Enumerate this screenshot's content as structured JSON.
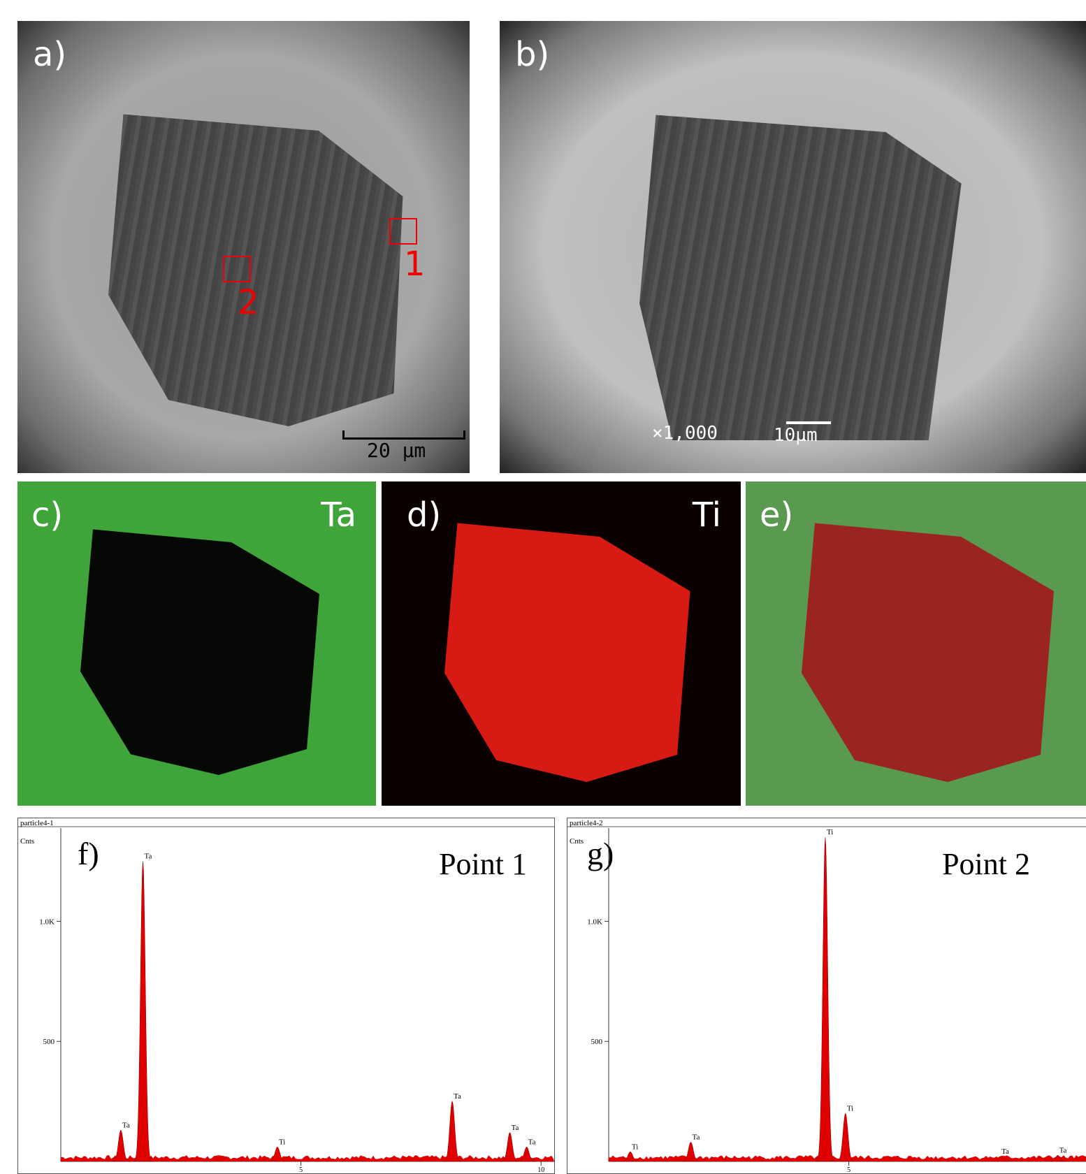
{
  "panels": [
    {
      "label": "a)",
      "annotations": [
        "1",
        "2"
      ],
      "scale_bar": "20 µm"
    },
    {
      "label": "b)",
      "magnification": "×1,000",
      "scale_bar": "10µm"
    },
    {
      "label": "c)",
      "element": "Ta"
    },
    {
      "label": "d)",
      "element": "Ti"
    },
    {
      "label": "e)"
    }
  ],
  "spectra": [
    {
      "label": "f)",
      "title": "particle4-1",
      "y_label": "Cnts",
      "point": "Point 1",
      "color": "#e00000",
      "xlim": [
        0,
        10.2
      ],
      "ylim": [
        0,
        1400
      ],
      "xticks": [
        5,
        10
      ],
      "yticks": [
        {
          "value": 1000,
          "label": "1.0K"
        },
        500
      ],
      "peaks": [
        {
          "element": "Ta",
          "energy": 1.25,
          "counts": 130
        },
        {
          "element": "Ta",
          "energy": 1.71,
          "counts": 1250
        },
        {
          "element": "Ti",
          "energy": 4.51,
          "counts": 60
        },
        {
          "element": "Ta",
          "energy": 8.15,
          "counts": 250
        },
        {
          "element": "Ta",
          "energy": 9.35,
          "counts": 120
        },
        {
          "element": "Ta",
          "energy": 9.7,
          "counts": 60
        }
      ]
    },
    {
      "label": "g)",
      "title": "particle4-2",
      "y_label": "Cnts",
      "point": "Point 2",
      "color": "#e00000",
      "xlim": [
        0,
        10.2
      ],
      "ylim": [
        0,
        1400
      ],
      "xticks": [
        5
      ],
      "yticks": [
        {
          "value": 1000,
          "label": "1.0K"
        },
        500
      ],
      "peaks": [
        {
          "element": "Ti",
          "energy": 0.45,
          "counts": 40
        },
        {
          "element": "Ta",
          "energy": 1.71,
          "counts": 80
        },
        {
          "element": "Ti",
          "energy": 4.51,
          "counts": 1350
        },
        {
          "element": "Ti",
          "energy": 4.93,
          "counts": 200
        },
        {
          "element": "Ta",
          "energy": 8.15,
          "counts": 20
        },
        {
          "element": "Ta",
          "energy": 9.35,
          "counts": 25
        }
      ]
    }
  ]
}
